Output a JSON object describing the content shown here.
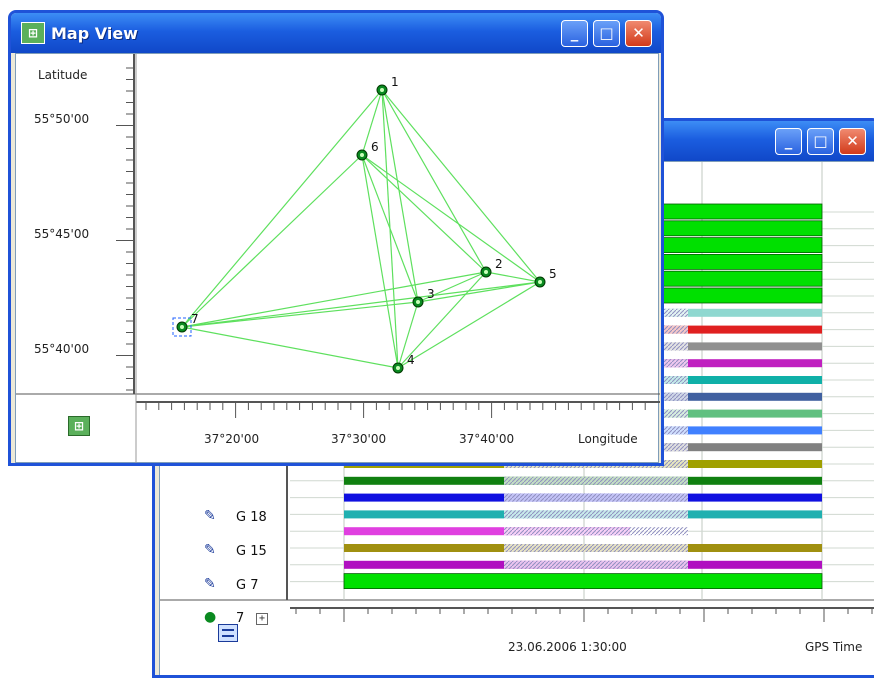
{
  "map_view": {
    "title": "Map View",
    "latitude_label": "Latitude",
    "longitude_label": "Longitude",
    "lat_ticks": [
      "55°50'00",
      "55°45'00",
      "55°40'00"
    ],
    "lon_ticks": [
      "37°20'00",
      "37°30'00",
      "37°40'00"
    ],
    "points": [
      "1",
      "2",
      "3",
      "4",
      "5",
      "6",
      "7"
    ],
    "icons": {
      "app": "map-app-icon",
      "footer": "map-view-icon"
    }
  },
  "gps_window": {
    "time_label": "GPS Time",
    "time_tick": "23.06.2006 1:30:00",
    "rows": [
      {
        "icon": "satellite-icon",
        "label": "G 18"
      },
      {
        "icon": "satellite-icon",
        "label": "G 15"
      },
      {
        "icon": "satellite-icon",
        "label": "G 7"
      },
      {
        "icon": "receiver-icon",
        "label": "7",
        "expand": "+"
      }
    ],
    "bar_colors": [
      "#00e000",
      "#00e000",
      "#00e000",
      "#00e000",
      "#00e000",
      "#00e000",
      "#8fd8d0",
      "#e02020",
      "#909090",
      "#c020c0",
      "#10b0a8",
      "#4060a0",
      "#60c080",
      "#4080ff",
      "#808080",
      "#a0a000",
      "#108010",
      "#1010e0",
      "#20b0b0",
      "#e040e0",
      "#a09010",
      "#b010c0",
      "#00e000"
    ]
  }
}
